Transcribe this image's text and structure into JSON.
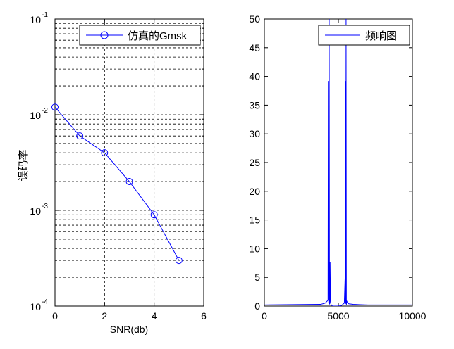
{
  "figure": {
    "background": "#ffffff",
    "axes_color": "#000000",
    "grid_color": "#000000"
  },
  "chart_data": [
    {
      "type": "line",
      "title": "",
      "xlabel": "SNR(db)",
      "ylabel": "误码率",
      "xscale": "linear",
      "yscale": "log",
      "xlim": [
        0,
        6
      ],
      "ylim": [
        0.0001,
        0.1
      ],
      "xticks": [
        0,
        2,
        4,
        6
      ],
      "xtick_labels": [
        "0",
        "2",
        "4",
        "6"
      ],
      "ytick_exponents": [
        -4,
        -3,
        -2,
        -1
      ],
      "ytick_base": "10",
      "grid": true,
      "legend_position": "top-right",
      "series": [
        {
          "name": "仿真的Gmsk",
          "color": "#0000ff",
          "marker": "circle",
          "x": [
            0,
            1,
            2,
            3,
            4,
            5
          ],
          "y": [
            0.012,
            0.006,
            0.004,
            0.002,
            0.0009,
            0.0003
          ]
        }
      ]
    },
    {
      "type": "line",
      "title": "",
      "xlabel": "",
      "ylabel": "",
      "xscale": "linear",
      "yscale": "linear",
      "xlim": [
        0,
        10000
      ],
      "ylim": [
        0,
        50
      ],
      "xticks": [
        0,
        5000,
        10000
      ],
      "xtick_labels": [
        "0",
        "5000",
        "10000"
      ],
      "yticks": [
        0,
        5,
        10,
        15,
        20,
        25,
        30,
        35,
        40,
        45,
        50
      ],
      "ytick_labels": [
        "0",
        "5",
        "10",
        "15",
        "20",
        "25",
        "30",
        "35",
        "40",
        "45",
        "50"
      ],
      "grid": false,
      "legend_position": "top-right",
      "series": [
        {
          "name": "频响图",
          "color": "#0000ff",
          "x": [
            0,
            3800,
            4100,
            4300,
            4320,
            4350,
            4380,
            4400,
            4420,
            4440,
            4470,
            4500,
            4600,
            4800,
            5000,
            5200,
            5400,
            5460,
            5480,
            5500,
            5520,
            5540,
            5560,
            5600,
            5650,
            5700,
            6000,
            7000,
            10000
          ],
          "y": [
            0.2,
            0.3,
            0.5,
            1.0,
            39.2,
            0.5,
            50,
            0.3,
            0.5,
            7.6,
            0.8,
            0.3,
            0.0,
            0.0,
            0.0,
            0.1,
            0.5,
            5.5,
            39.2,
            0.4,
            50,
            0.2,
            0.9,
            0.7,
            0.6,
            0.4,
            0.3,
            0.2,
            0.2
          ]
        }
      ]
    }
  ]
}
